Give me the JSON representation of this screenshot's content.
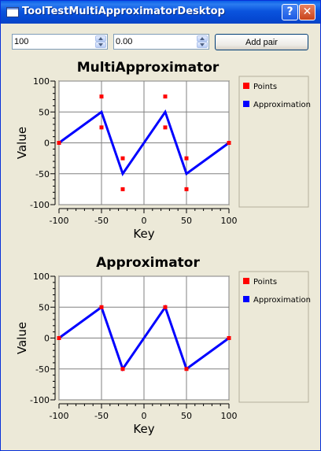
{
  "window": {
    "title": "ToolTestMultiApproximatorDesktop",
    "help_label": "?",
    "close_label": "✕"
  },
  "controls": {
    "key_value": "100",
    "value_value": "0.00",
    "add_button_label": "Add pair"
  },
  "colors": {
    "points": "#ff0000",
    "approximation": "#0000ff",
    "grid": "#808080"
  },
  "chart_data": [
    {
      "type": "scatter",
      "title": "MultiApproximator",
      "xlabel": "Key",
      "ylabel": "Value",
      "xlim": [
        -100,
        100
      ],
      "ylim": [
        -100,
        100
      ],
      "xticks": [
        -100,
        -50,
        0,
        50,
        100
      ],
      "yticks": [
        100,
        50,
        0,
        -50,
        -100
      ],
      "xtick_labels": [
        "-100",
        "-50",
        "0",
        "50",
        "100"
      ],
      "ytick_labels": [
        "100",
        "50",
        "0",
        "-50",
        "-100"
      ],
      "grid": true,
      "legend_position": "right",
      "series": [
        {
          "name": "Points",
          "kind": "points",
          "x": [
            -100,
            -50,
            -50,
            -25,
            -25,
            25,
            25,
            50,
            50,
            100
          ],
          "y": [
            0,
            75,
            25,
            -25,
            -75,
            75,
            25,
            -25,
            -75,
            0
          ]
        },
        {
          "name": "Approximation",
          "kind": "line",
          "x": [
            -100,
            -50,
            -25,
            25,
            50,
            100
          ],
          "y": [
            0,
            50,
            -50,
            50,
            -50,
            0
          ]
        }
      ]
    },
    {
      "type": "scatter",
      "title": "Approximator",
      "xlabel": "Key",
      "ylabel": "Value",
      "xlim": [
        -100,
        100
      ],
      "ylim": [
        -100,
        100
      ],
      "xticks": [
        -100,
        -50,
        0,
        50,
        100
      ],
      "yticks": [
        100,
        50,
        0,
        -50,
        -100
      ],
      "xtick_labels": [
        "-100",
        "-50",
        "0",
        "50",
        "100"
      ],
      "ytick_labels": [
        "100",
        "50",
        "0",
        "-50",
        "-100"
      ],
      "grid": true,
      "legend_position": "right",
      "series": [
        {
          "name": "Points",
          "kind": "points",
          "x": [
            -100,
            -50,
            -25,
            25,
            50,
            100
          ],
          "y": [
            0,
            50,
            -50,
            50,
            -50,
            0
          ]
        },
        {
          "name": "Approximation",
          "kind": "line",
          "x": [
            -100,
            -50,
            -25,
            25,
            50,
            100
          ],
          "y": [
            0,
            50,
            -50,
            50,
            -50,
            0
          ]
        }
      ]
    }
  ]
}
